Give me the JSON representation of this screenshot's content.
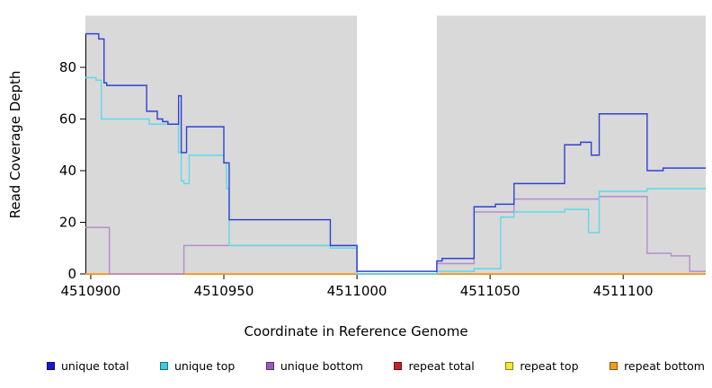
{
  "chart_data": {
    "type": "line",
    "subtype": "step-coverage",
    "title": "",
    "xlabel": "Coordinate in Reference Genome",
    "ylabel": "Read Coverage Depth",
    "xlim": [
      4510898,
      4511131
    ],
    "ylim": [
      0,
      100
    ],
    "x_ticks": [
      4510900,
      4510950,
      4511000,
      4511050,
      4511100
    ],
    "y_ticks": [
      0,
      20,
      40,
      60,
      80
    ],
    "grid": false,
    "plot_background_color": "#ffffff",
    "plot_background_regions": [
      {
        "x_start": 4510898,
        "x_end": 4511000,
        "color": "#d9d9d9"
      },
      {
        "x_start": 4511030,
        "x_end": 4511131,
        "color": "#d9d9d9"
      }
    ],
    "series": [
      {
        "name": "unique total",
        "color": "#2f42d4",
        "points": [
          [
            4510898,
            93
          ],
          [
            4510903,
            91
          ],
          [
            4510905,
            74
          ],
          [
            4510906,
            73
          ],
          [
            4510921,
            63
          ],
          [
            4510925,
            60
          ],
          [
            4510927,
            59
          ],
          [
            4510929,
            58
          ],
          [
            4510933,
            69
          ],
          [
            4510934,
            47
          ],
          [
            4510936,
            57
          ],
          [
            4510950,
            43
          ],
          [
            4510952,
            21
          ],
          [
            4510990,
            11
          ],
          [
            4511000,
            1
          ],
          [
            4511030,
            5
          ],
          [
            4511032,
            6
          ],
          [
            4511044,
            26
          ],
          [
            4511052,
            27
          ],
          [
            4511059,
            35
          ],
          [
            4511078,
            50
          ],
          [
            4511084,
            51
          ],
          [
            4511088,
            46
          ],
          [
            4511091,
            62
          ],
          [
            4511109,
            40
          ],
          [
            4511115,
            41
          ],
          [
            4511131,
            41
          ]
        ]
      },
      {
        "name": "unique top",
        "color": "#5cdbe8",
        "points": [
          [
            4510898,
            76
          ],
          [
            4510902,
            75
          ],
          [
            4510904,
            60
          ],
          [
            4510922,
            58
          ],
          [
            4510933,
            47
          ],
          [
            4510934,
            36
          ],
          [
            4510935,
            35
          ],
          [
            4510937,
            46
          ],
          [
            4510950,
            43
          ],
          [
            4510951,
            33
          ],
          [
            4510952,
            11
          ],
          [
            4510990,
            10
          ],
          [
            4511000,
            0
          ],
          [
            4511030,
            1
          ],
          [
            4511044,
            2
          ],
          [
            4511054,
            22
          ],
          [
            4511059,
            24
          ],
          [
            4511078,
            25
          ],
          [
            4511087,
            16
          ],
          [
            4511091,
            32
          ],
          [
            4511109,
            33
          ],
          [
            4511131,
            33
          ]
        ]
      },
      {
        "name": "unique bottom",
        "color": "#b48ccf",
        "points": [
          [
            4510898,
            18
          ],
          [
            4510907,
            0
          ],
          [
            4510935,
            11
          ],
          [
            4511000,
            0
          ],
          [
            4511030,
            4
          ],
          [
            4511044,
            24
          ],
          [
            4511059,
            29
          ],
          [
            4511091,
            30
          ],
          [
            4511109,
            8
          ],
          [
            4511118,
            7
          ],
          [
            4511125,
            1
          ],
          [
            4511131,
            1
          ]
        ]
      },
      {
        "name": "repeat total",
        "color": "#cc2929",
        "points": [
          [
            4510898,
            0
          ],
          [
            4511131,
            0
          ]
        ]
      },
      {
        "name": "repeat top",
        "color": "#f2ec3f",
        "points": [
          [
            4510898,
            0
          ],
          [
            4511131,
            0
          ]
        ]
      },
      {
        "name": "repeat bottom",
        "color": "#ff9d26",
        "points": [
          [
            4510898,
            0
          ],
          [
            4511131,
            0
          ]
        ]
      }
    ],
    "legend": {
      "position": "bottom",
      "items": [
        {
          "label": "unique total",
          "color": "#1717cb"
        },
        {
          "label": "unique top",
          "color": "#38cfdb"
        },
        {
          "label": "unique bottom",
          "color": "#9c59c4"
        },
        {
          "label": "repeat total",
          "color": "#c42424"
        },
        {
          "label": "repeat top",
          "color": "#f0e83a"
        },
        {
          "label": "repeat bottom",
          "color": "#f09b1e"
        }
      ]
    }
  }
}
